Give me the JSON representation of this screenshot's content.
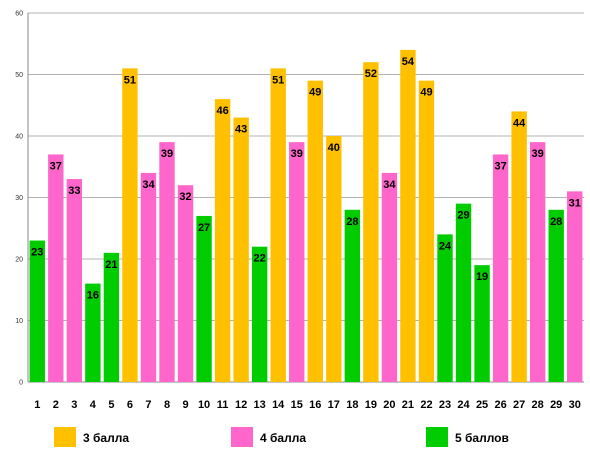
{
  "chart_data": {
    "type": "bar",
    "categories": [
      "1",
      "2",
      "3",
      "4",
      "5",
      "6",
      "7",
      "8",
      "9",
      "10",
      "11",
      "12",
      "13",
      "14",
      "15",
      "16",
      "17",
      "18",
      "19",
      "20",
      "21",
      "22",
      "23",
      "24",
      "25",
      "26",
      "27",
      "28",
      "29",
      "30"
    ],
    "values": [
      23,
      37,
      33,
      16,
      21,
      51,
      34,
      39,
      32,
      27,
      46,
      43,
      22,
      51,
      39,
      49,
      40,
      28,
      52,
      34,
      54,
      49,
      24,
      29,
      19,
      37,
      44,
      39,
      28,
      31
    ],
    "groups": [
      "5",
      "4",
      "4",
      "5",
      "5",
      "3",
      "4",
      "4",
      "4",
      "5",
      "3",
      "3",
      "5",
      "3",
      "4",
      "3",
      "3",
      "5",
      "3",
      "4",
      "3",
      "3",
      "5",
      "5",
      "5",
      "4",
      "3",
      "4",
      "5",
      "4"
    ],
    "ylim": [
      0,
      60
    ],
    "yticks": [
      0,
      10,
      20,
      30,
      40,
      50,
      60
    ],
    "grid": true,
    "legend": {
      "placement": "bottom",
      "entries": [
        {
          "key": "3",
          "label": "3 балла",
          "color": "#ffc000"
        },
        {
          "key": "4",
          "label": "4 балла",
          "color": "#ff66cc"
        },
        {
          "key": "5",
          "label": "5 баллов",
          "color": "#00cc00"
        }
      ]
    },
    "colors": {
      "3": "#ffc000",
      "4": "#ff66cc",
      "5": "#00cc00",
      "grid": "#b3b3b3",
      "axis": "#888888"
    }
  }
}
